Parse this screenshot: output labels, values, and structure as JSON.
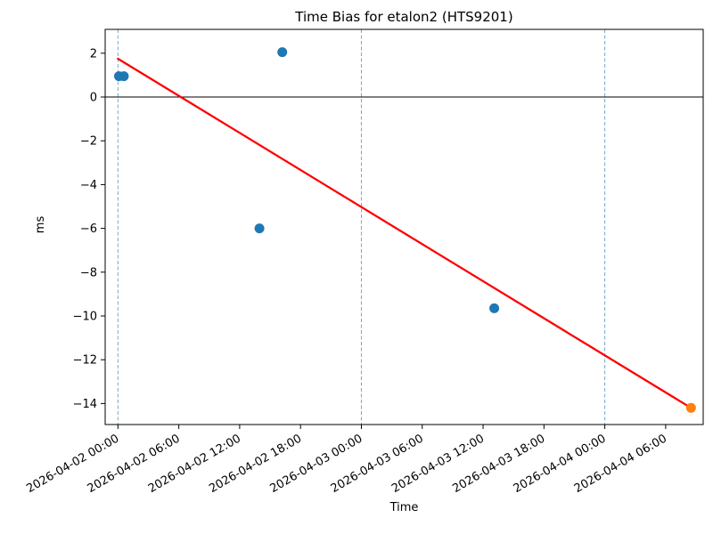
{
  "figure": {
    "title": "Time Bias for etalon2 (HTS9201)",
    "xlabel": "Time",
    "ylabel": "ms"
  },
  "chart_data": {
    "type": "scatter",
    "title": "Time Bias for etalon2 (HTS9201)",
    "xlabel": "Time",
    "ylabel": "ms",
    "x_axis": {
      "unit": "hours since 2026-04-02 00:00",
      "xlim_hours": [
        -1.26,
        57.7
      ],
      "ticks": [
        {
          "hours": 0,
          "label": "2026-04-02 00:00"
        },
        {
          "hours": 6,
          "label": "2026-04-02 06:00"
        },
        {
          "hours": 12,
          "label": "2026-04-02 12:00"
        },
        {
          "hours": 18,
          "label": "2026-04-02 18:00"
        },
        {
          "hours": 24,
          "label": "2026-04-03 00:00"
        },
        {
          "hours": 30,
          "label": "2026-04-03 06:00"
        },
        {
          "hours": 36,
          "label": "2026-04-03 12:00"
        },
        {
          "hours": 42,
          "label": "2026-04-03 18:00"
        },
        {
          "hours": 48,
          "label": "2026-04-04 00:00"
        },
        {
          "hours": 54,
          "label": "2026-04-04 06:00"
        }
      ]
    },
    "y_axis": {
      "ylim": [
        -14.96,
        3.09
      ],
      "ticks": [
        {
          "value": 2,
          "label": "2"
        },
        {
          "value": 0,
          "label": "0"
        },
        {
          "value": -2,
          "label": "−2"
        },
        {
          "value": -4,
          "label": "−4"
        },
        {
          "value": -6,
          "label": "−6"
        },
        {
          "value": -8,
          "label": "−8"
        },
        {
          "value": -10,
          "label": "−10"
        },
        {
          "value": -12,
          "label": "−12"
        },
        {
          "value": -14,
          "label": "−14"
        }
      ]
    },
    "series": [
      {
        "name": "time-bias-observations",
        "marker": "circle",
        "color": "#1f77b4",
        "points": [
          {
            "time": "2026-04-02 00:06",
            "hours": 0.1,
            "ms": 0.95
          },
          {
            "time": "2026-04-02 00:35",
            "hours": 0.58,
            "ms": 0.95
          },
          {
            "time": "2026-04-02 13:57",
            "hours": 13.95,
            "ms": -6.0
          },
          {
            "time": "2026-04-02 16:12",
            "hours": 16.2,
            "ms": 2.05
          },
          {
            "time": "2026-04-03 13:06",
            "hours": 37.1,
            "ms": -9.65
          }
        ]
      },
      {
        "name": "latest-observation",
        "marker": "circle",
        "color": "#ff7f0e",
        "points": [
          {
            "time": "2026-04-04 08:30",
            "hours": 56.5,
            "ms": -14.2
          }
        ]
      }
    ],
    "trend_line": {
      "color": "#ff0000",
      "width": 2.3,
      "from": {
        "hours": 0.0,
        "ms": 1.75
      },
      "to": {
        "hours": 56.5,
        "ms": -14.2
      }
    },
    "day_boundary_lines": {
      "color": "#74a9cf",
      "style": "dashed",
      "hours": [
        0,
        24,
        48
      ]
    },
    "zero_line": {
      "color": "#000000",
      "ms": 0
    },
    "grid": false,
    "legend": null,
    "marker_radius": 5.5
  }
}
